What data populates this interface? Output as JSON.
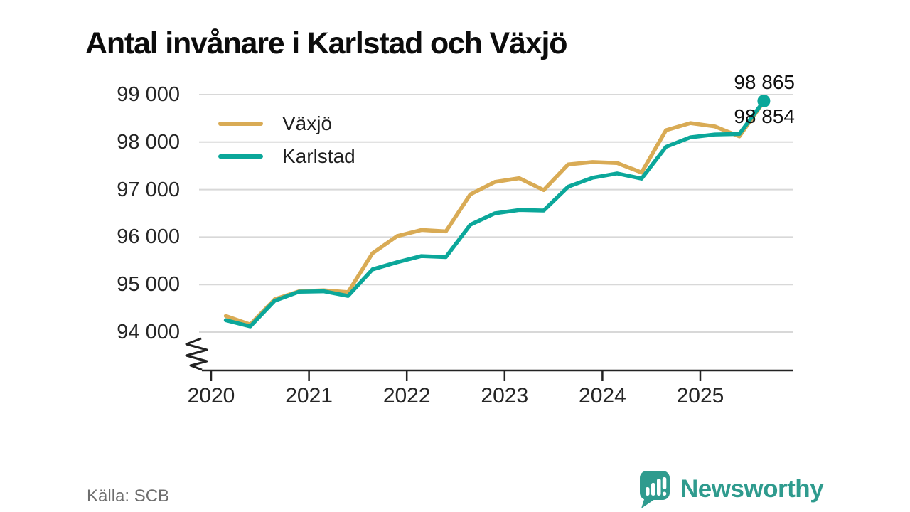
{
  "title": "Antal invånare i Karlstad och Växjö",
  "source": "Källa: SCB",
  "branding": {
    "logo_text": "Newsworthy",
    "logo_color": "#2f9b8e"
  },
  "chart_data": {
    "type": "line",
    "title": "Antal invånare i Karlstad och Växjö",
    "xlabel": "",
    "ylabel": "",
    "x_ticks": [
      2020,
      2021,
      2022,
      2023,
      2024,
      2025
    ],
    "x_tick_labels": [
      "2020",
      "2021",
      "2022",
      "2023",
      "2024",
      "2025"
    ],
    "y_ticks": [
      99000,
      98000,
      97000,
      96000,
      95000,
      94000
    ],
    "y_tick_labels": [
      "99 000",
      "98 000",
      "97 000",
      "96 000",
      "95 000",
      "94 000"
    ],
    "ylim": [
      93500,
      99000
    ],
    "axis_break": true,
    "grid": "horizontal",
    "grid_color": "#d8d8d8",
    "axis_color": "#222222",
    "legend_position": "top-left-inside",
    "x_start": 2020.15,
    "x_step": 0.25,
    "series": [
      {
        "name": "Växjö",
        "color": "#d9ab55",
        "end_label": "98 854",
        "end_dot": false,
        "values": [
          94340,
          94160,
          94690,
          94860,
          94880,
          94840,
          95660,
          96020,
          96150,
          96120,
          96900,
          97160,
          97240,
          96990,
          97530,
          97580,
          97560,
          97360,
          98250,
          98400,
          98330,
          98120,
          98854
        ]
      },
      {
        "name": "Karlstad",
        "color": "#0ba79a",
        "end_label": "98 865",
        "end_dot": true,
        "values": [
          94250,
          94120,
          94660,
          94850,
          94860,
          94760,
          95320,
          95470,
          95600,
          95580,
          96260,
          96500,
          96570,
          96560,
          97060,
          97250,
          97340,
          97230,
          97900,
          98100,
          98160,
          98170,
          98865
        ]
      }
    ]
  }
}
